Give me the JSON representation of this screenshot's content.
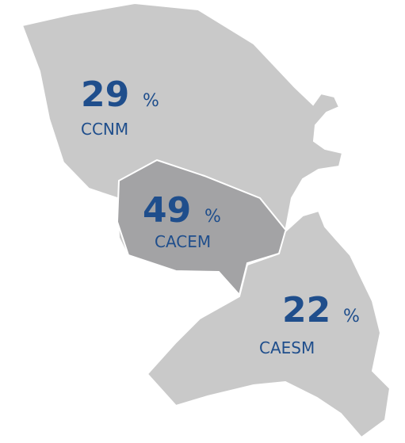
{
  "unit": "%",
  "regions": [
    {
      "name": "CCNM",
      "value": 29
    },
    {
      "name": "CACEM",
      "value": 49
    },
    {
      "name": "CAESM",
      "value": 22
    }
  ]
}
